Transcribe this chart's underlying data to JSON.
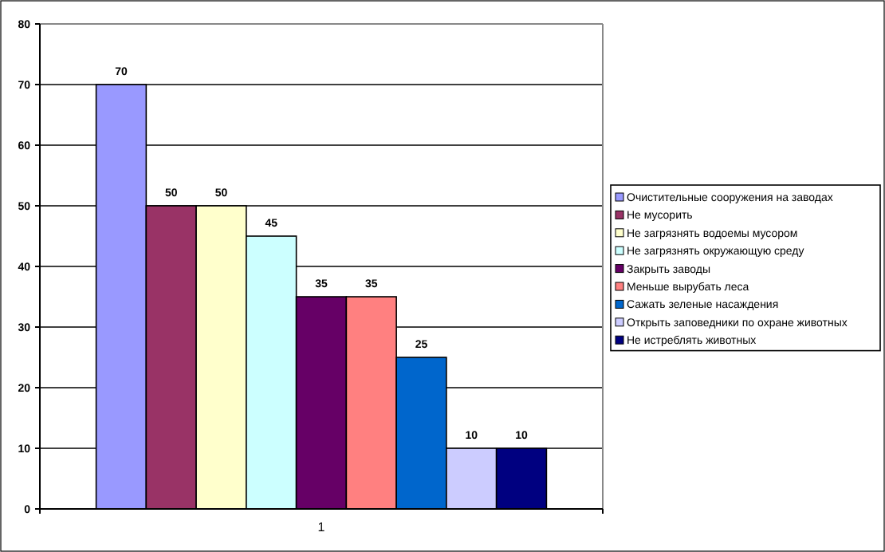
{
  "chart_data": {
    "type": "bar",
    "categories": [
      "1"
    ],
    "ylim": [
      0,
      80
    ],
    "yticks": [
      0,
      10,
      20,
      30,
      40,
      50,
      60,
      70,
      80
    ],
    "grid": "y",
    "legend": "right",
    "data_labels": true,
    "series": [
      {
        "name": "Очистительные сооружения на заводах",
        "color": "#9999ff",
        "values": [
          70
        ]
      },
      {
        "name": "Не мусорить",
        "color": "#993366",
        "values": [
          50
        ]
      },
      {
        "name": "Не загрязнять водоемы мусором",
        "color": "#ffffcc",
        "values": [
          50
        ]
      },
      {
        "name": "Не загрязнять окружающую среду",
        "color": "#ccffff",
        "values": [
          45
        ]
      },
      {
        "name": "Закрыть заводы",
        "color": "#660066",
        "values": [
          35
        ]
      },
      {
        "name": "Меньше вырубать леса",
        "color": "#ff8080",
        "values": [
          35
        ]
      },
      {
        "name": "Сажать зеленые насаждения",
        "color": "#0066cc",
        "values": [
          25
        ]
      },
      {
        "name": "Открыть заповедники по охране животных",
        "color": "#ccccff",
        "values": [
          10
        ]
      },
      {
        "name": "Не истреблять животных",
        "color": "#000080",
        "values": [
          10
        ]
      }
    ]
  }
}
